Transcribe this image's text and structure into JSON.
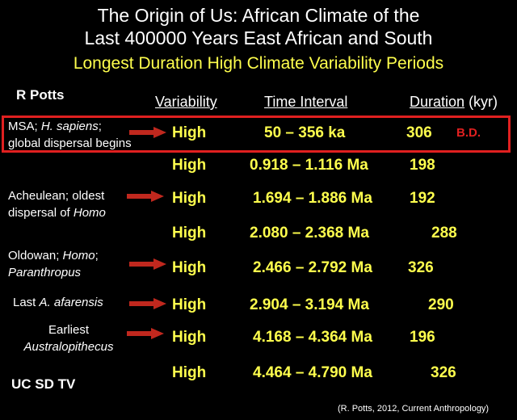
{
  "title_line1": "The Origin of Us: African Climate of the",
  "title_line2": "Last 400000 Years East African and South",
  "subtitle": "Longest Duration High Climate Variability Periods",
  "author": "R Potts",
  "headers": {
    "variability": "Variability",
    "time_interval": "Time Interval",
    "duration": "Duration",
    "duration_unit": "(kyr)"
  },
  "rows": [
    {
      "variability": "High",
      "interval": "50 – 356 ka",
      "duration": "306"
    },
    {
      "variability": "High",
      "interval": "0.918 – 1.116 Ma",
      "duration": "198"
    },
    {
      "variability": "High",
      "interval": "1.694 – 1.886 Ma",
      "duration": "192"
    },
    {
      "variability": "High",
      "interval": "2.080 – 2.368 Ma",
      "duration": "288"
    },
    {
      "variability": "High",
      "interval": "2.466 – 2.792 Ma",
      "duration": "326"
    },
    {
      "variability": "High",
      "interval": "2.904 – 3.194 Ma",
      "duration": "290"
    },
    {
      "variability": "High",
      "interval": "4.168 – 4.364 Ma",
      "duration": "196"
    },
    {
      "variability": "High",
      "interval": "4.464 – 4.790 Ma",
      "duration": "326"
    }
  ],
  "labels": {
    "msa_a": "MSA; ",
    "msa_b": "H. sapiens",
    "msa_c": ";",
    "msa_line2": "global dispersal begins",
    "acheulean_line1": "Acheulean; oldest",
    "acheulean_a": "dispersal of ",
    "acheulean_b": "Homo",
    "oldowan_a": "Oldowan; ",
    "oldowan_b": "Homo",
    "oldowan_c": ";",
    "oldowan_line2": "Paranthropus",
    "afarensis_a": "Last ",
    "afarensis_b": "A. afarensis",
    "earliest_line1": "Earliest",
    "earliest_line2": "Australopithecus"
  },
  "bd_mark": "B.D.",
  "watermark": "UC SD TV",
  "source": "(R. Potts, 2012, Current Anthropology)",
  "colors": {
    "background": "#000000",
    "accent_yellow": "#ffff4d",
    "highlight_red": "#e02020",
    "arrow": "#c0281e"
  }
}
